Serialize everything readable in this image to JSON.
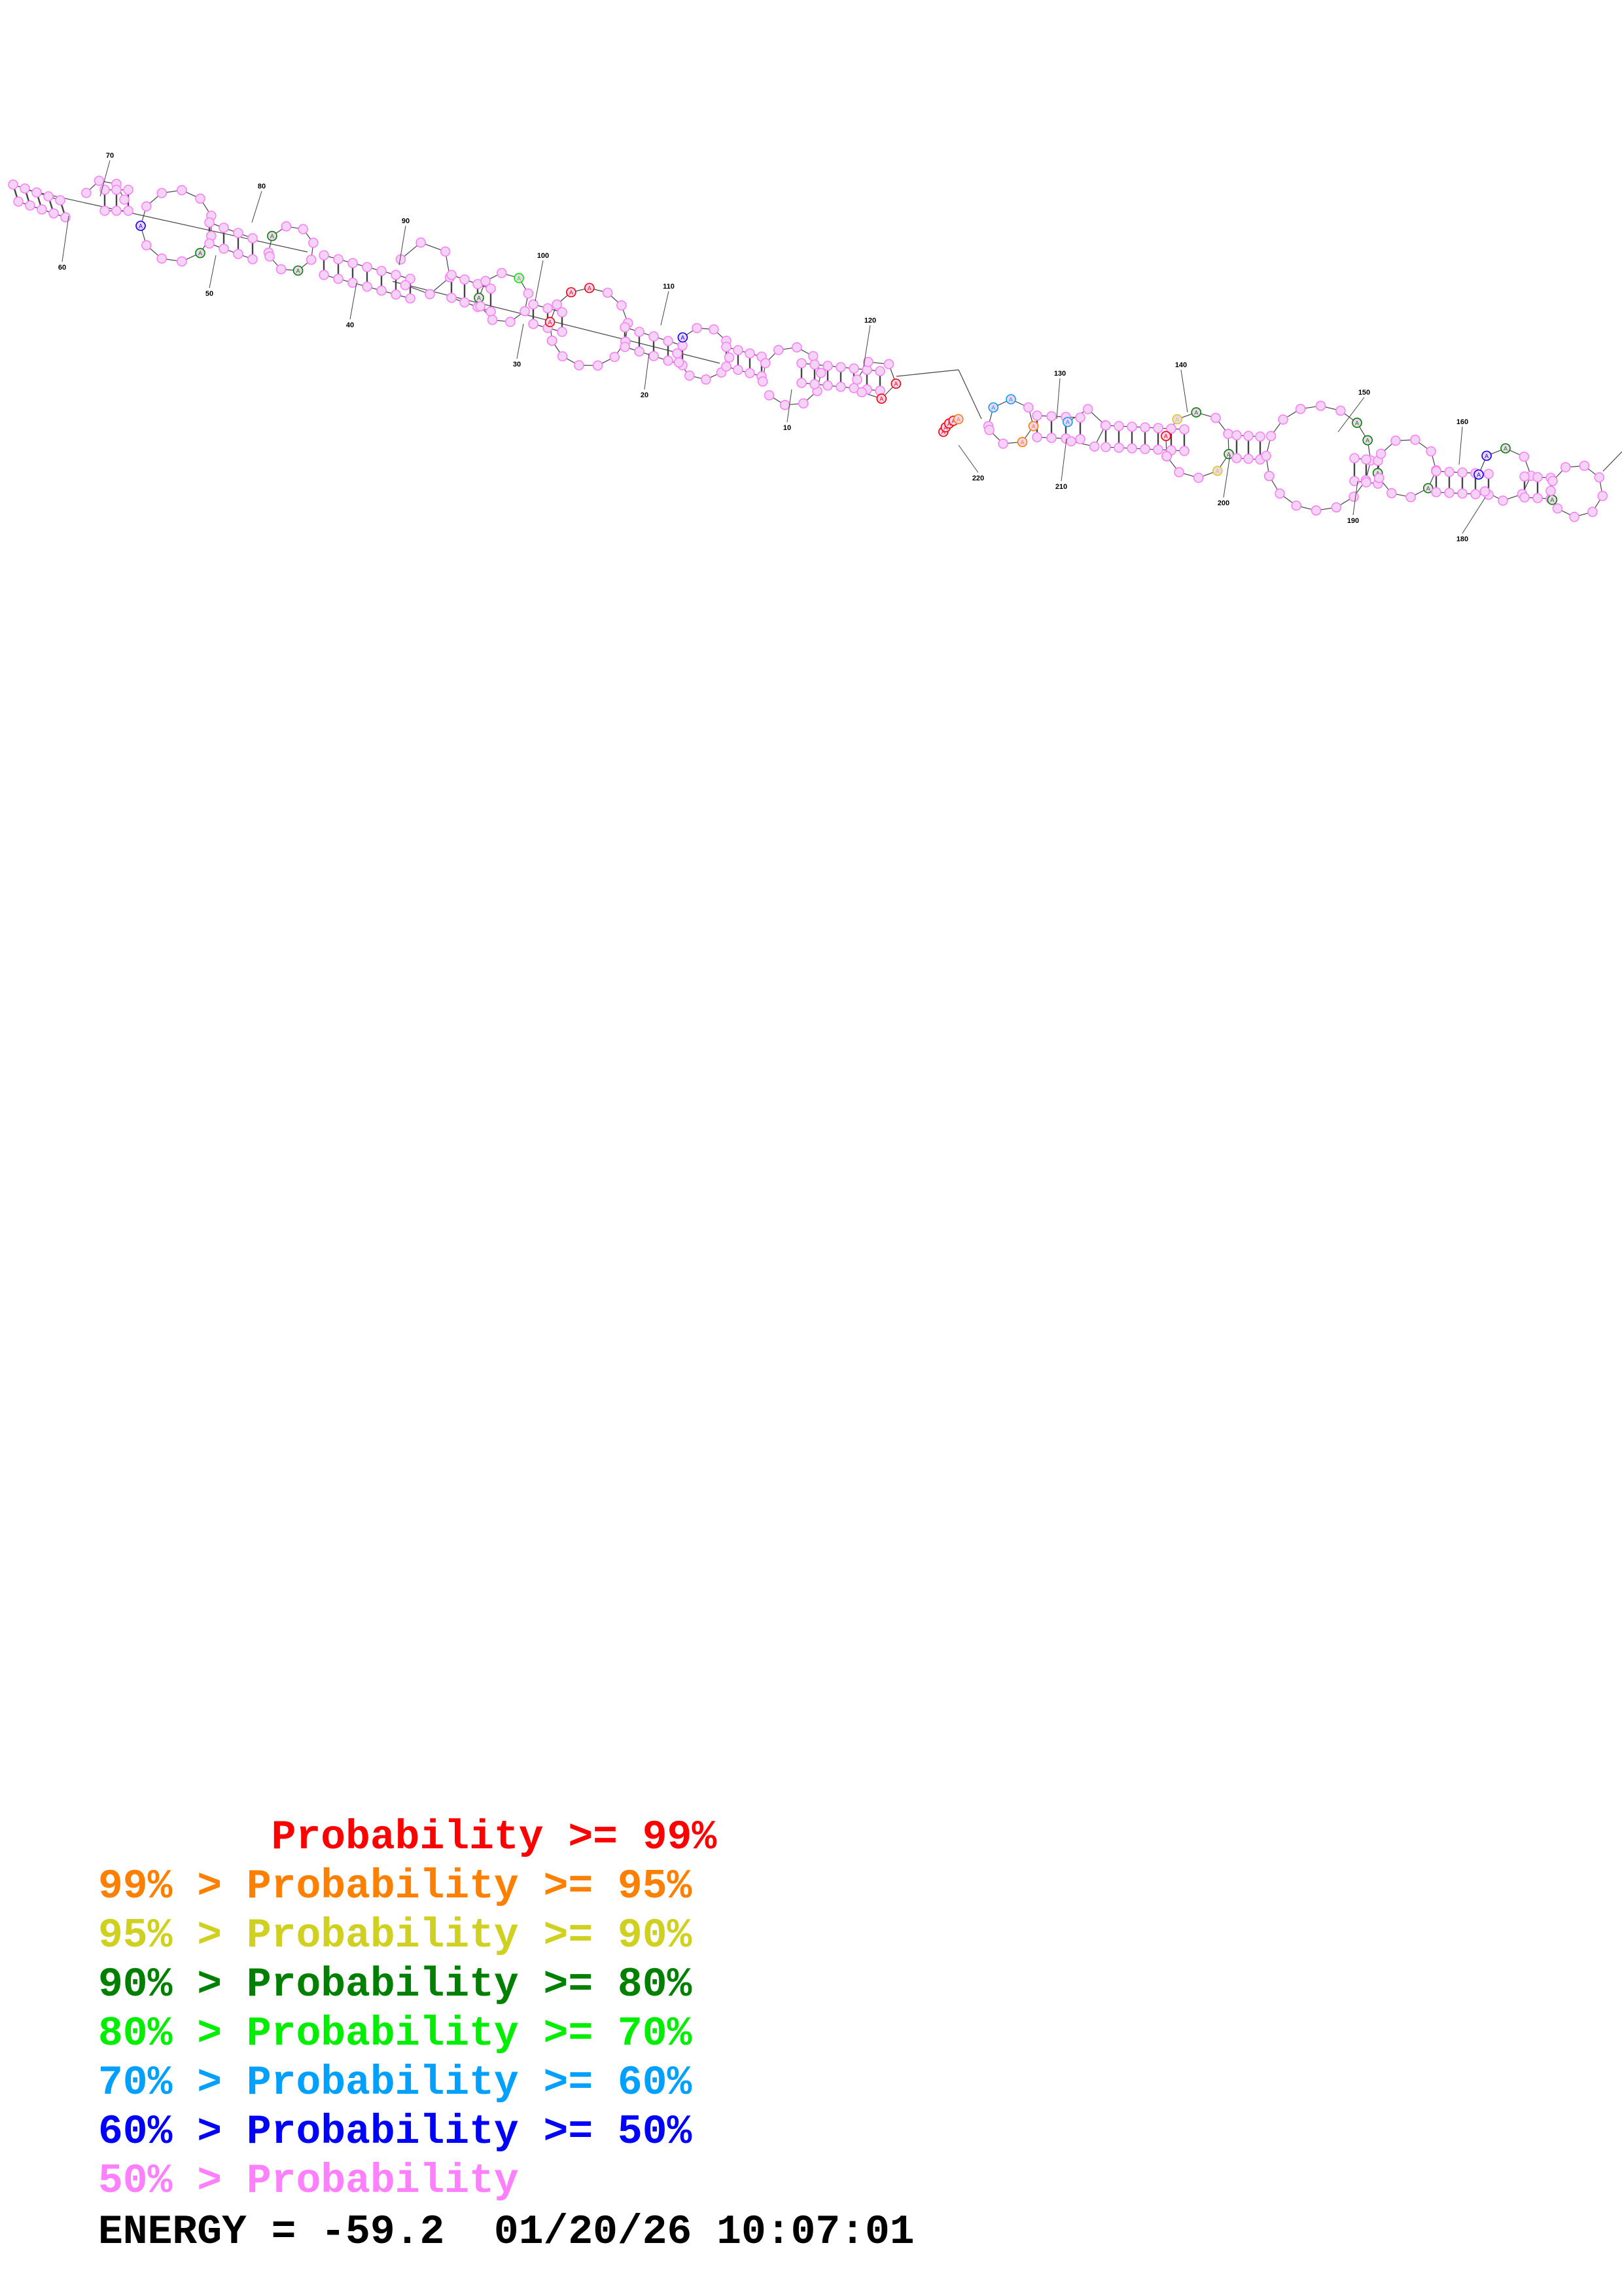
{
  "tick_labels": [
    "70",
    "80",
    "60",
    "50",
    "90",
    "40",
    "100",
    "30",
    "110",
    "20",
    "120",
    "10",
    "130",
    "140",
    "150",
    "160",
    "220",
    "210",
    "200",
    "190",
    "180"
  ],
  "legend": [
    {
      "text": "       Probability >= 99%",
      "color": "#ff0000"
    },
    {
      "text": "99% > Probability >= 95%",
      "color": "#ff8000"
    },
    {
      "text": "95% > Probability >= 90%",
      "color": "#d0d020"
    },
    {
      "text": "90% > Probability >= 80%",
      "color": "#008000"
    },
    {
      "text": "80% > Probability >= 70%",
      "color": "#00ee00"
    },
    {
      "text": "70% > Probability >= 60%",
      "color": "#00a0ff"
    },
    {
      "text": "60% > Probability >= 50%",
      "color": "#0000ff"
    },
    {
      "text": "50% > Probability",
      "color": "#ff80ff"
    }
  ],
  "energy_line": "ENERGY = -59.2  01/20/26 10:07:01",
  "colors": {
    "p99": "#ff0000",
    "p95": "#ff8000",
    "p90": "#d0d020",
    "p80": "#008000",
    "p70": "#00ee00",
    "p60": "#00a0ff",
    "p50": "#0000ff",
    "plow": "#ff80ff"
  }
}
